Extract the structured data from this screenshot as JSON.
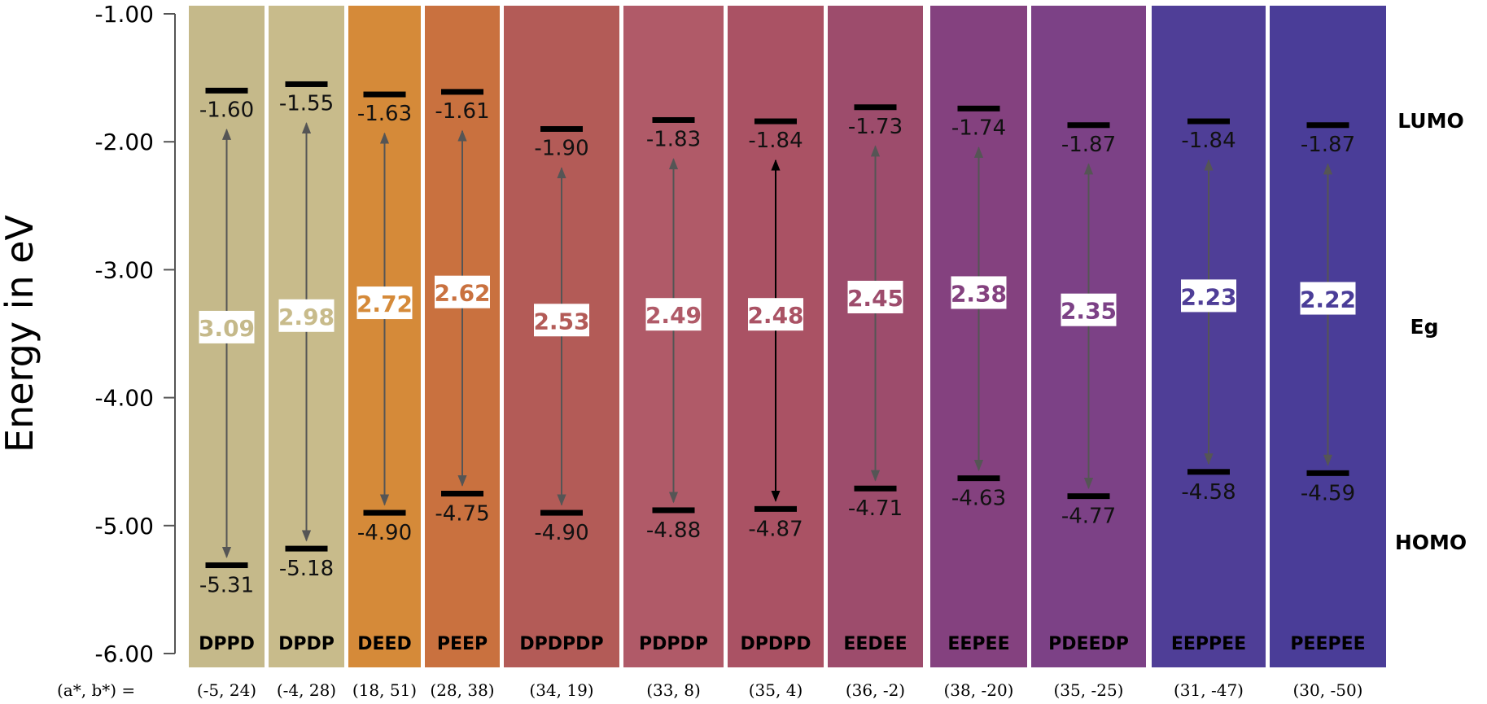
{
  "chart_data": {
    "type": "energy-level-diagram",
    "ylabel": "Energy in eV",
    "ylim": [
      -6.0,
      -1.0
    ],
    "yticks": [
      "-1.00",
      "-2.00",
      "-3.00",
      "-4.00",
      "-5.00",
      "-6.00"
    ],
    "ab_prefix": "(a*, b*) =",
    "side_labels": {
      "lumo": "LUMO",
      "gap": "Eg",
      "homo": "HOMO"
    },
    "series": [
      {
        "name": "DPPD",
        "lumo": -1.6,
        "homo": -5.31,
        "lumo_label": "-1.60",
        "homo_label": "-5.31",
        "gap": "3.09",
        "ab": "(-5, 24)",
        "color": "#c5b98a",
        "dark_arrow": false
      },
      {
        "name": "DPDP",
        "lumo": -1.55,
        "homo": -5.18,
        "lumo_label": "-1.55",
        "homo_label": "-5.18",
        "gap": "2.98",
        "ab": "(-4, 28)",
        "color": "#c8bb8b",
        "dark_arrow": false
      },
      {
        "name": "DEED",
        "lumo": -1.63,
        "homo": -4.9,
        "lumo_label": "-1.63",
        "homo_label": "-4.90",
        "gap": "2.72",
        "ab": "(18, 51)",
        "color": "#d58a39",
        "dark_arrow": false
      },
      {
        "name": "PEEP",
        "lumo": -1.61,
        "homo": -4.75,
        "lumo_label": "-1.61",
        "homo_label": "-4.75",
        "gap": "2.62",
        "ab": "(28, 38)",
        "color": "#c9713f",
        "dark_arrow": false
      },
      {
        "name": "DPDPDP",
        "lumo": -1.9,
        "homo": -4.9,
        "lumo_label": "-1.90",
        "homo_label": "-4.90",
        "gap": "2.53",
        "ab": "(34, 19)",
        "color": "#b35b57",
        "dark_arrow": false
      },
      {
        "name": "PDPDP",
        "lumo": -1.83,
        "homo": -4.88,
        "lumo_label": "-1.83",
        "homo_label": "-4.88",
        "gap": "2.49",
        "ab": "(33, 8)",
        "color": "#b05a68",
        "dark_arrow": false
      },
      {
        "name": "DPDPD",
        "lumo": -1.84,
        "homo": -4.87,
        "lumo_label": "-1.84",
        "homo_label": "-4.87",
        "gap": "2.48",
        "ab": "(35, 4)",
        "color": "#aa5264",
        "dark_arrow": true
      },
      {
        "name": "EEDEE",
        "lumo": -1.73,
        "homo": -4.71,
        "lumo_label": "-1.73",
        "homo_label": "-4.71",
        "gap": "2.45",
        "ab": "(36, -2)",
        "color": "#9d4c6c",
        "dark_arrow": false
      },
      {
        "name": "EEPEE",
        "lumo": -1.74,
        "homo": -4.63,
        "lumo_label": "-1.74",
        "homo_label": "-4.63",
        "gap": "2.38",
        "ab": "(38, -20)",
        "color": "#84417f",
        "dark_arrow": false
      },
      {
        "name": "PDEEDP",
        "lumo": -1.87,
        "homo": -4.77,
        "lumo_label": "-1.87",
        "homo_label": "-4.77",
        "gap": "2.35",
        "ab": "(35, -25)",
        "color": "#7c4186",
        "dark_arrow": false
      },
      {
        "name": "EEPPEE",
        "lumo": -1.84,
        "homo": -4.58,
        "lumo_label": "-1.84",
        "homo_label": "-4.58",
        "gap": "2.23",
        "ab": "(31, -47)",
        "color": "#4f3e97",
        "dark_arrow": false
      },
      {
        "name": "PEEPEE",
        "lumo": -1.87,
        "homo": -4.59,
        "lumo_label": "-1.87",
        "homo_label": "-4.59",
        "gap": "2.22",
        "ab": "(30, -50)",
        "color": "#4a3d98",
        "dark_arrow": false
      }
    ]
  }
}
